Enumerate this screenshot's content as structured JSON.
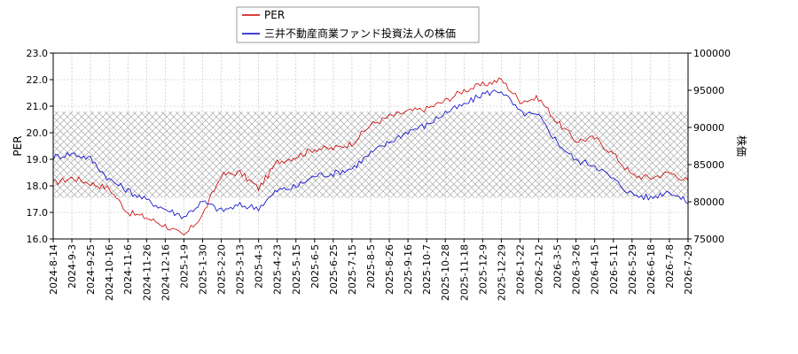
{
  "chart_data": {
    "type": "line",
    "legend_position": "top-center",
    "grid": true,
    "band_hatch": true,
    "ylabel_left": "PER",
    "ylabel_right": "株価",
    "ylim_left": [
      16.0,
      23.0
    ],
    "ylim_right": [
      75000,
      100000
    ],
    "yticks_left": [
      "16.0",
      "17.0",
      "18.0",
      "19.0",
      "20.0",
      "21.0",
      "22.0",
      "23.0"
    ],
    "yticks_right": [
      "75000",
      "80000",
      "85000",
      "90000",
      "95000",
      "100000"
    ],
    "hatch_band": [
      17.55,
      20.8
    ],
    "x_dates": [
      "2024-8-14",
      "2024-9-3",
      "2024-9-25",
      "2024-10-16",
      "2024-11-6",
      "2024-11-26",
      "2024-12-16",
      "2025-1-9",
      "2025-1-30",
      "2025-2-20",
      "2025-3-13",
      "2025-4-3",
      "2025-4-23",
      "2025-5-15",
      "2025-6-5",
      "2025-6-25",
      "2025-7-15",
      "2025-8-5",
      "2025-8-26",
      "2025-9-16",
      "2025-10-7",
      "2025-10-28",
      "2025-11-18",
      "2025-12-9",
      "2025-12-29",
      "2026-1-22",
      "2026-2-12",
      "2026-3-5",
      "2026-3-26",
      "2026-4-15",
      "2026-5-11",
      "2026-5-29",
      "2026-6-18",
      "2026-7-8",
      "2026-7-29"
    ],
    "series": [
      {
        "name": "PER",
        "axis": "left",
        "color": "#cc0000",
        "values": [
          18.1,
          18.3,
          18.1,
          17.9,
          17.0,
          16.8,
          16.5,
          16.1,
          16.9,
          18.4,
          18.5,
          17.9,
          18.9,
          19.1,
          19.4,
          19.4,
          19.6,
          20.3,
          20.6,
          20.8,
          20.9,
          21.2,
          21.6,
          21.8,
          22.0,
          21.2,
          21.3,
          20.4,
          19.7,
          19.8,
          19.2,
          18.4,
          18.3,
          18.5,
          18.2
        ]
      },
      {
        "name": "三井不動産商業ファンド投資法人の株価",
        "axis": "right",
        "color": "#0000cc",
        "values": [
          86000,
          86500,
          85800,
          83000,
          81500,
          80200,
          79000,
          78000,
          80000,
          78800,
          79500,
          79200,
          81500,
          82000,
          83500,
          83800,
          84500,
          86500,
          88000,
          89500,
          90300,
          92000,
          93000,
          94500,
          95000,
          92000,
          91500,
          88000,
          85500,
          85000,
          83000,
          81000,
          80500,
          81500,
          79800
        ]
      }
    ]
  }
}
